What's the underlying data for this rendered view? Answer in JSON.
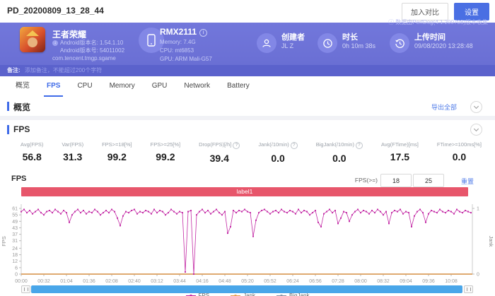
{
  "topbar": {
    "title": "PD_20200809_13_28_44",
    "compare_button": "加入对比",
    "settings_button": "设置"
  },
  "hero": {
    "collect_note": "ⓘ 数据由PerfDog(4.1.200708)版本收集",
    "app": {
      "name": "王者荣耀",
      "version_name": "Android版本名: 1.54.1.10",
      "version_code": "Android版本号: 54011002",
      "package": "com.tencent.tmgp.sgame"
    },
    "device": {
      "model": "RMX2111",
      "memory": "Memory: 7.4G",
      "cpu": "CPU: mt6853",
      "gpu": "GPU: ARM Mali-G57"
    },
    "creator": {
      "label": "创建者",
      "value": "JL Z"
    },
    "duration": {
      "label": "时长",
      "value": "0h 10m 38s"
    },
    "upload": {
      "label": "上传时间",
      "value": "09/08/2020 13:28:48"
    }
  },
  "note": {
    "label": "备注:",
    "placeholder": "添加备注，不能超过200个字符"
  },
  "tabs": {
    "items": [
      "概览",
      "FPS",
      "CPU",
      "Memory",
      "GPU",
      "Network",
      "Battery"
    ],
    "active_index": 1
  },
  "overview_section": {
    "title": "概览",
    "export_label": "导出全部"
  },
  "fps_section": {
    "title": "FPS"
  },
  "stats": {
    "columns": [
      {
        "label": "Avg(FPS)",
        "value": "56.8",
        "info": false
      },
      {
        "label": "Var(FPS)",
        "value": "31.3",
        "info": false
      },
      {
        "label": "FPS>=18[%]",
        "value": "99.2",
        "info": false
      },
      {
        "label": "FPS>=25[%]",
        "value": "99.2",
        "info": false
      },
      {
        "label": "Drop(FPS)[/h]",
        "value": "39.4",
        "info": true
      },
      {
        "label": "Jank(/10min)",
        "value": "0.0",
        "info": true
      },
      {
        "label": "BigJank(/10min)",
        "value": "0.0",
        "info": true
      },
      {
        "label": "Avg(FTime)[ms]",
        "value": "17.5",
        "info": false
      },
      {
        "label": "FTime>=100ms[%]",
        "value": "0.0",
        "info": false
      },
      {
        "label": "Delta(FTime)>100ms[/h]",
        "value": "0.0",
        "info": true
      }
    ]
  },
  "chart_controls": {
    "chart_title": "FPS",
    "threshold_label": "FPS(>=)",
    "threshold1": "18",
    "threshold2": "25",
    "reset_label": "重置"
  },
  "chart_data": {
    "type": "line",
    "title": "FPS",
    "band_label": "label1",
    "band_color": "#e7566b",
    "ylabel": "FPS",
    "y2label": "Jank",
    "ylim": [
      0,
      61
    ],
    "y2lim": [
      0,
      1
    ],
    "y_ticks": [
      61,
      55,
      49,
      43,
      37,
      31,
      24,
      18,
      12,
      6,
      0
    ],
    "y2_ticks": [
      1,
      0
    ],
    "grid": false,
    "legend_position": "bottom",
    "legend": [
      "FPS",
      "Jank",
      "BigJank"
    ],
    "x_ticks": [
      "00:00",
      "00:32",
      "01:04",
      "01:36",
      "02:08",
      "02:40",
      "03:12",
      "03:44",
      "04:16",
      "04:48",
      "05:20",
      "05:52",
      "06:24",
      "06:56",
      "07:28",
      "08:00",
      "08:32",
      "09:04",
      "09:36",
      "10:08"
    ],
    "x_tick_interval_s": 32,
    "series": [
      {
        "name": "FPS",
        "color": "#c32aa5",
        "sample_interval_s": 4,
        "values": [
          58,
          60,
          57,
          59,
          56,
          58,
          60,
          57,
          55,
          58,
          59,
          57,
          60,
          58,
          56,
          59,
          57,
          48,
          55,
          58,
          60,
          57,
          59,
          56,
          58,
          57,
          60,
          58,
          55,
          57,
          59,
          57,
          60,
          58,
          52,
          45,
          54,
          58,
          57,
          59,
          60,
          56,
          58,
          57,
          59,
          58,
          56,
          60,
          57,
          59,
          58,
          55,
          57,
          60,
          58,
          56,
          58,
          57,
          2,
          58,
          59,
          0,
          55,
          58,
          60,
          57,
          59,
          56,
          58,
          60,
          57,
          55,
          58,
          38,
          44,
          59,
          57,
          59,
          58,
          60,
          58,
          57,
          35,
          50,
          57,
          59,
          60,
          58,
          56,
          58,
          59,
          57,
          60,
          58,
          57,
          59,
          58,
          56,
          60,
          57,
          59,
          58,
          55,
          57,
          59,
          48,
          44,
          56,
          58,
          60,
          57,
          59,
          47,
          52,
          58,
          57,
          49,
          55,
          58,
          60,
          57,
          59,
          58,
          56,
          59,
          57,
          60,
          58,
          55,
          58,
          47,
          57,
          59,
          58,
          60,
          56,
          58,
          57,
          44,
          54,
          58,
          60,
          57,
          48,
          56,
          59,
          58,
          57,
          60,
          58,
          57,
          59,
          58,
          56,
          60,
          58,
          57,
          59,
          58,
          57
        ]
      },
      {
        "name": "Jank",
        "color": "#e8a050",
        "constant": 0
      },
      {
        "name": "BigJank",
        "color": "#8a94a6",
        "constant": 0
      }
    ]
  }
}
